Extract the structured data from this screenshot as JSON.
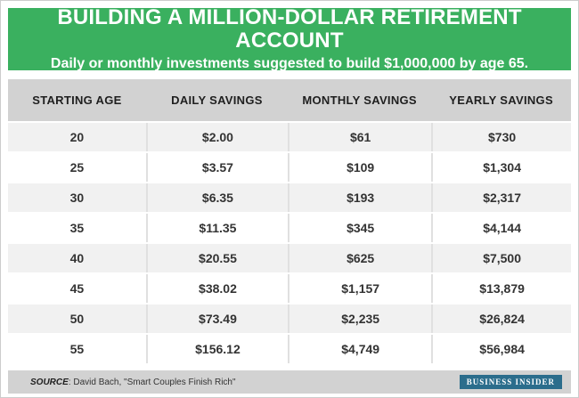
{
  "header": {
    "title": "BUILDING A MILLION-DOLLAR RETIREMENT ACCOUNT",
    "subtitle": "Daily or monthly investments suggested to build $1,000,000 by age 65."
  },
  "table": {
    "columns": [
      "STARTING AGE",
      "DAILY SAVINGS",
      "MONTHLY SAVINGS",
      "YEARLY SAVINGS"
    ],
    "rows": [
      [
        "20",
        "$2.00",
        "$61",
        "$730"
      ],
      [
        "25",
        "$3.57",
        "$109",
        "$1,304"
      ],
      [
        "30",
        "$6.35",
        "$193",
        "$2,317"
      ],
      [
        "35",
        "$11.35",
        "$345",
        "$4,144"
      ],
      [
        "40",
        "$20.55",
        "$625",
        "$7,500"
      ],
      [
        "45",
        "$38.02",
        "$1,157",
        "$13,879"
      ],
      [
        "50",
        "$73.49",
        "$2,235",
        "$26,824"
      ],
      [
        "55",
        "$156.12",
        "$4,749",
        "$56,984"
      ]
    ]
  },
  "footer": {
    "source_label": "SOURCE",
    "source_text": ": David Bach, \"Smart Couples Finish Rich\"",
    "brand": "BUSINESS INSIDER"
  },
  "colors": {
    "banner_green": "#3ab05f",
    "header_gray": "#d2d2d2",
    "alt_row_gray": "#f1f1f1",
    "brand_blue": "#2b6d8c",
    "text_dark": "#333333"
  },
  "chart_data": {
    "type": "table",
    "title": "BUILDING A MILLION-DOLLAR RETIREMENT ACCOUNT",
    "subtitle": "Daily or monthly investments suggested to build $1,000,000 by age 65.",
    "categories": [
      20,
      25,
      30,
      35,
      40,
      45,
      50,
      55
    ],
    "xlabel": "Starting age",
    "series": [
      {
        "name": "Daily Savings",
        "values": [
          2.0,
          3.57,
          6.35,
          11.35,
          20.55,
          38.02,
          73.49,
          156.12
        ]
      },
      {
        "name": "Monthly Savings",
        "values": [
          61,
          109,
          193,
          345,
          625,
          1157,
          2235,
          4749
        ]
      },
      {
        "name": "Yearly Savings",
        "values": [
          730,
          1304,
          2317,
          4144,
          7500,
          13879,
          26824,
          56984
        ]
      }
    ],
    "source": "David Bach, \"Smart Couples Finish Rich\""
  }
}
